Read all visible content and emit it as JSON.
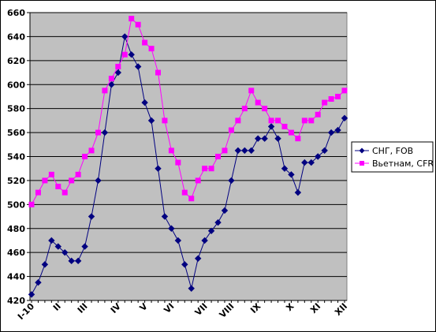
{
  "chart_data": {
    "type": "line",
    "title": "",
    "xlabel": "",
    "ylabel": "",
    "ylim": [
      420,
      660
    ],
    "yticks": [
      420,
      440,
      460,
      480,
      500,
      520,
      540,
      560,
      580,
      600,
      620,
      640,
      660
    ],
    "grid": true,
    "legend_position": "right",
    "plot_background": "#c0c0c0",
    "point_count": 48,
    "x_tick_labels": [
      {
        "label": "I-10",
        "index": 0
      },
      {
        "label": "II",
        "index": 4
      },
      {
        "label": "III",
        "index": 8
      },
      {
        "label": "IV",
        "index": 13
      },
      {
        "label": "V",
        "index": 17
      },
      {
        "label": "VI",
        "index": 21
      },
      {
        "label": "VII",
        "index": 26
      },
      {
        "label": "VIII",
        "index": 30
      },
      {
        "label": "IX",
        "index": 34
      },
      {
        "label": "X",
        "index": 39
      },
      {
        "label": "XI",
        "index": 43
      },
      {
        "label": "XII",
        "index": 47
      }
    ],
    "series": [
      {
        "name": "СНГ, FOB",
        "color": "#000080",
        "marker": "diamond",
        "values": [
          425,
          435,
          450,
          470,
          465,
          460,
          453,
          453,
          465,
          490,
          520,
          560,
          600,
          610,
          640,
          625,
          615,
          585,
          570,
          530,
          490,
          480,
          470,
          450,
          430,
          455,
          470,
          478,
          485,
          495,
          520,
          545,
          545,
          545,
          555,
          555,
          565,
          555,
          530,
          525,
          510,
          535,
          535,
          540,
          545,
          560,
          562,
          572
        ]
      },
      {
        "name": "Вьетнам, CFR",
        "color": "#ff00ff",
        "marker": "square",
        "values": [
          500,
          510,
          520,
          525,
          515,
          510,
          520,
          525,
          540,
          545,
          560,
          595,
          605,
          615,
          625,
          655,
          650,
          635,
          630,
          610,
          570,
          545,
          535,
          510,
          505,
          520,
          530,
          530,
          540,
          545,
          562,
          570,
          580,
          595,
          585,
          580,
          570,
          570,
          565,
          560,
          555,
          570,
          570,
          575,
          585,
          588,
          590,
          595
        ]
      }
    ]
  }
}
